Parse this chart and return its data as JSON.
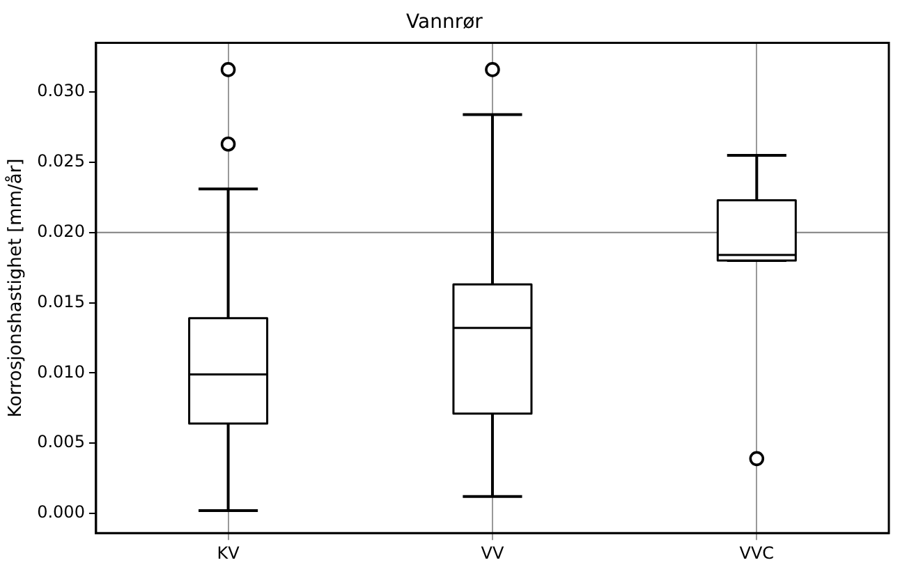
{
  "chart_data": {
    "type": "box",
    "title": "Vannrør",
    "ylabel": "Korrosjonshastighet [mm/år]",
    "categories": [
      "KV",
      "VV",
      "VVC"
    ],
    "boxes": [
      {
        "low": 0.0002,
        "q1": 0.0064,
        "median": 0.0099,
        "q3": 0.0139,
        "high": 0.0231,
        "outliers": [
          0.0263,
          0.0316
        ]
      },
      {
        "low": 0.0012,
        "q1": 0.0071,
        "median": 0.0132,
        "q3": 0.0163,
        "high": 0.0284,
        "outliers": [
          0.0316
        ]
      },
      {
        "low": 0.018,
        "q1": 0.018,
        "median": 0.0184,
        "q3": 0.0223,
        "high": 0.0255,
        "outliers": [
          0.0039
        ]
      }
    ],
    "ylim": [
      -0.0014,
      0.0335
    ],
    "yticks": [
      {
        "value": 0,
        "label": "0.000"
      },
      {
        "value": 0.005,
        "label": "0.005"
      },
      {
        "value": 0.01,
        "label": "0.010"
      },
      {
        "value": 0.015,
        "label": "0.015"
      },
      {
        "value": 0.02,
        "label": "0.020"
      },
      {
        "value": 0.025,
        "label": "0.025"
      },
      {
        "value": 0.03,
        "label": "0.030"
      }
    ],
    "grid": "x",
    "ref_lines": [
      {
        "axis": "y",
        "value": 0.02,
        "color": "#808080"
      }
    ],
    "legend": false
  }
}
